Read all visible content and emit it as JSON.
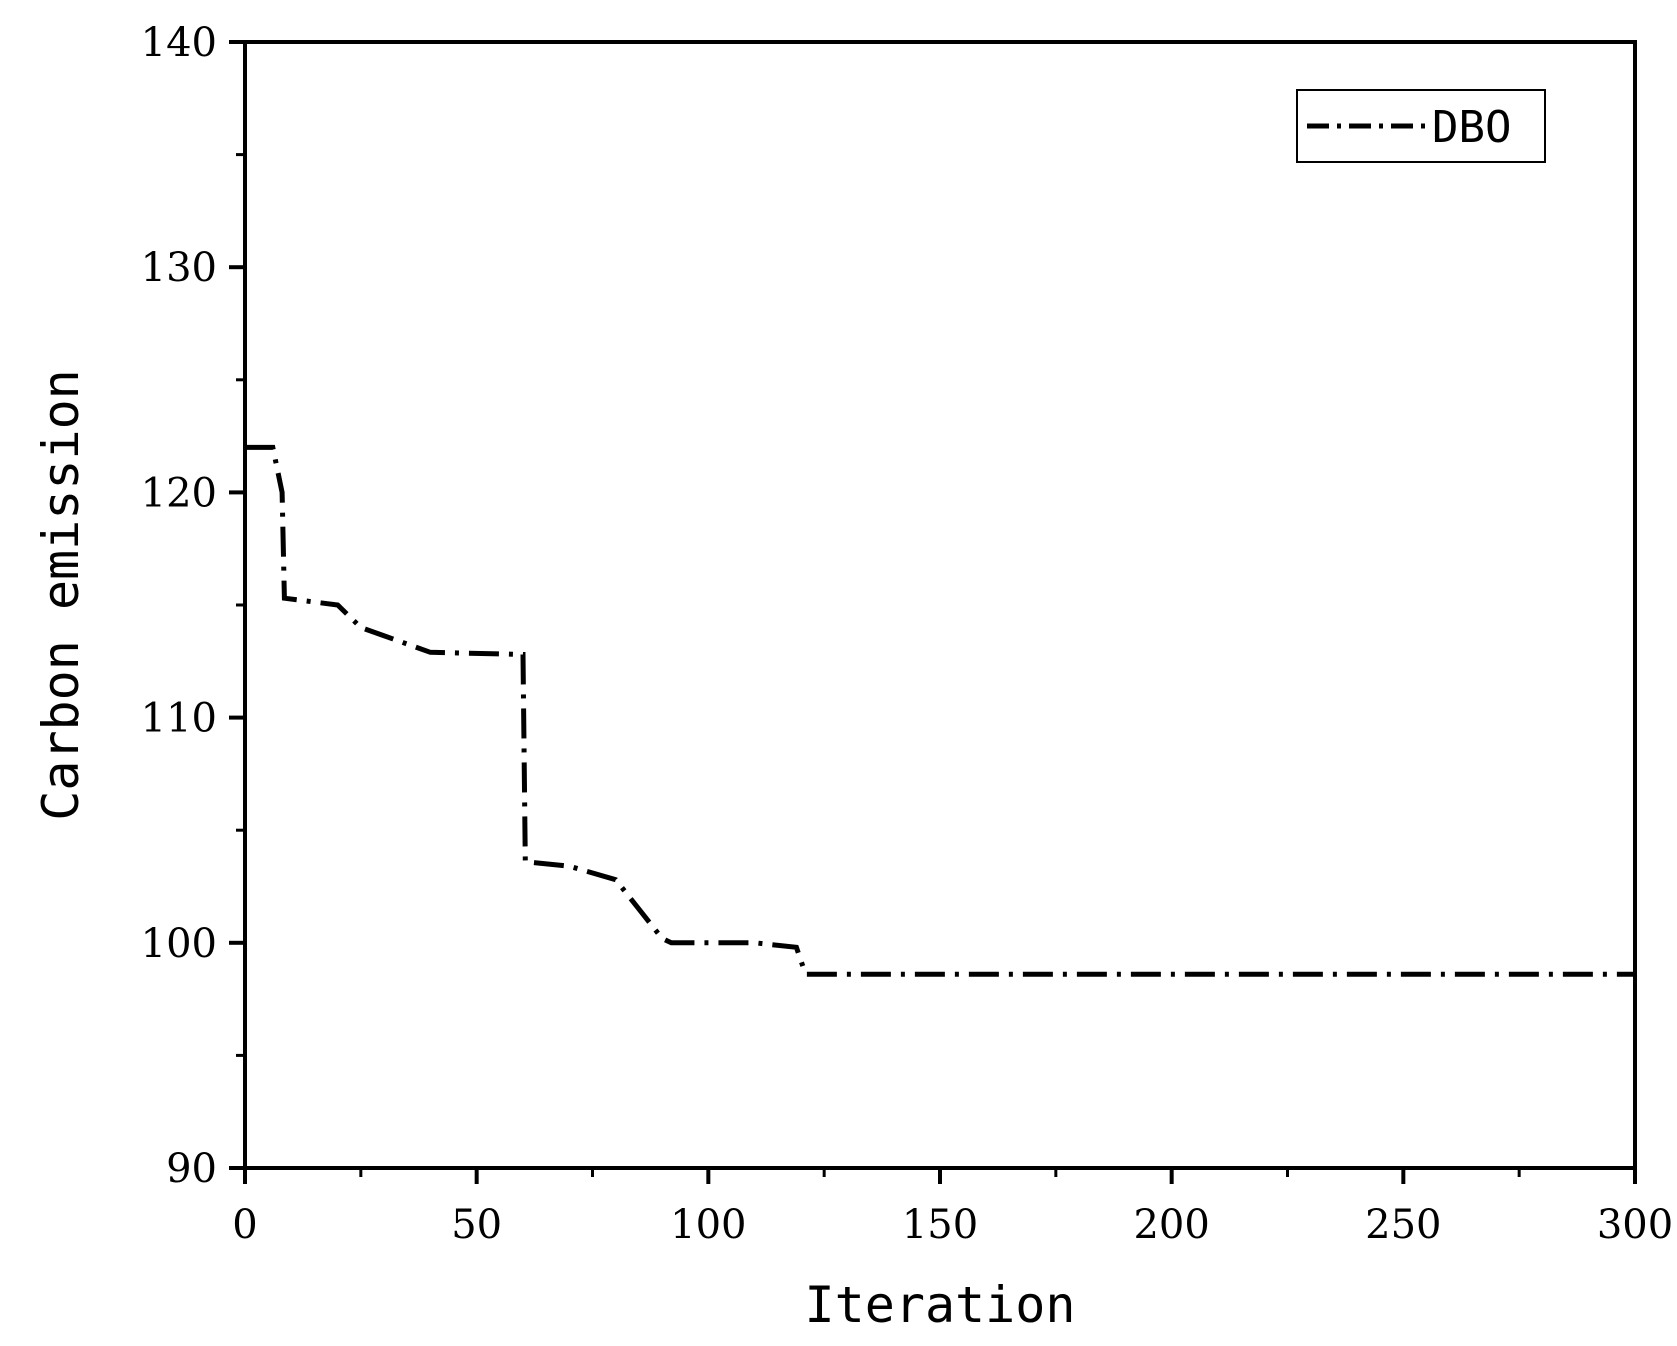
{
  "chart_data": {
    "type": "line",
    "title": "",
    "xlabel": "Iteration",
    "ylabel": "Carbon emission",
    "xlim": [
      0,
      300
    ],
    "ylim": [
      90,
      140
    ],
    "x_ticks": [
      0,
      50,
      100,
      150,
      200,
      250,
      300
    ],
    "y_ticks": [
      90,
      100,
      110,
      120,
      130,
      140
    ],
    "grid": false,
    "legend_position": "top-right",
    "series": [
      {
        "name": "DBO",
        "line_style": "dash-dot",
        "color": "#000000",
        "x": [
          0,
          6,
          8,
          8.5,
          20,
          25,
          40,
          60,
          60.5,
          70,
          80,
          90,
          92,
          110,
          119,
          121,
          300
        ],
        "y": [
          122,
          122,
          120,
          115.3,
          115,
          114,
          112.9,
          112.8,
          103.6,
          103.4,
          102.8,
          100.2,
          100,
          100,
          99.8,
          98.6,
          98.6
        ]
      }
    ]
  }
}
